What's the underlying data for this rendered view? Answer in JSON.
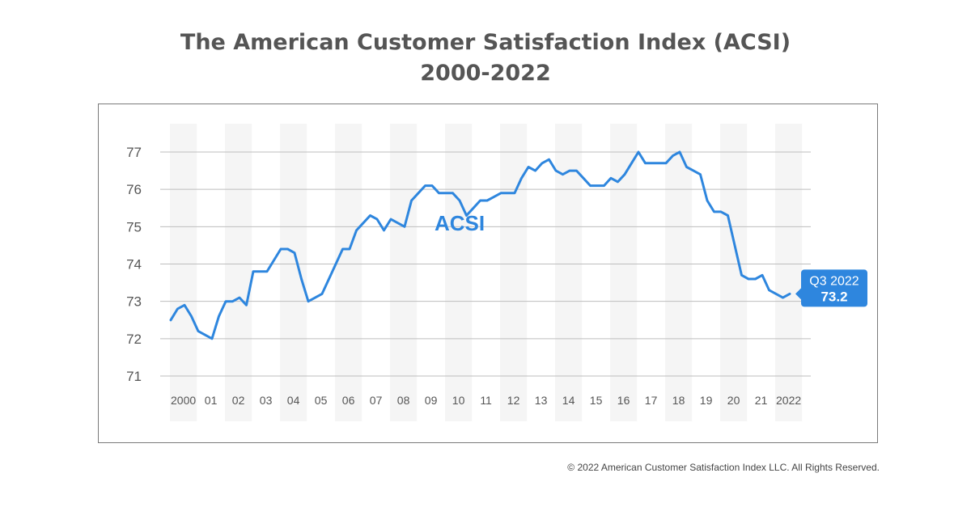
{
  "title": {
    "line1": "The American Customer Satisfaction Index (ACSI)",
    "line2": "2000-2022"
  },
  "footer": {
    "copyright": "© 2022 American Customer Satisfaction Index LLC. All Rights Reserved."
  },
  "colors": {
    "line": "#2e86de",
    "text": "#555555",
    "grid": "#bdbdbd",
    "band": "#f5f5f5",
    "callout": "#2e86de"
  },
  "chart_data": {
    "type": "line",
    "title": "The American Customer Satisfaction Index (ACSI) 2000-2022",
    "xlabel": "",
    "ylabel": "",
    "ylim": [
      71,
      77
    ],
    "yticks": [
      71,
      72,
      73,
      74,
      75,
      76,
      77
    ],
    "x_tick_labels": [
      "2000",
      "01",
      "02",
      "03",
      "04",
      "05",
      "06",
      "07",
      "08",
      "09",
      "10",
      "11",
      "12",
      "13",
      "14",
      "15",
      "16",
      "17",
      "18",
      "19",
      "20",
      "21",
      "2022"
    ],
    "grid": "horizontal",
    "year_bands": "alternating",
    "series": [
      {
        "name": "ACSI",
        "x": [
          2000.0,
          2000.25,
          2000.5,
          2000.75,
          2001.0,
          2001.25,
          2001.5,
          2001.75,
          2002.0,
          2002.25,
          2002.5,
          2002.75,
          2003.0,
          2003.25,
          2003.5,
          2003.75,
          2004.0,
          2004.25,
          2004.5,
          2004.75,
          2005.0,
          2005.25,
          2005.5,
          2005.75,
          2006.0,
          2006.25,
          2006.5,
          2006.75,
          2007.0,
          2007.25,
          2007.5,
          2007.75,
          2008.0,
          2008.25,
          2008.5,
          2008.75,
          2009.0,
          2009.25,
          2009.5,
          2009.75,
          2010.0,
          2010.25,
          2010.5,
          2010.75,
          2011.0,
          2011.25,
          2011.5,
          2011.75,
          2012.0,
          2012.25,
          2012.5,
          2012.75,
          2013.0,
          2013.25,
          2013.5,
          2013.75,
          2014.0,
          2014.25,
          2014.5,
          2014.75,
          2015.0,
          2015.25,
          2015.5,
          2015.75,
          2016.0,
          2016.25,
          2016.5,
          2016.75,
          2017.0,
          2017.25,
          2017.5,
          2017.75,
          2018.0,
          2018.25,
          2018.5,
          2018.75,
          2019.0,
          2019.25,
          2019.5,
          2019.75,
          2020.0,
          2020.25,
          2020.5,
          2020.75,
          2021.0,
          2021.25,
          2021.5,
          2021.75,
          2022.0,
          2022.25,
          2022.5
        ],
        "values": [
          72.5,
          72.8,
          72.9,
          72.6,
          72.2,
          72.1,
          72.0,
          72.6,
          73.0,
          73.0,
          73.1,
          72.9,
          73.8,
          73.8,
          73.8,
          74.1,
          74.4,
          74.4,
          74.3,
          73.6,
          73.0,
          73.1,
          73.2,
          73.6,
          74.0,
          74.4,
          74.4,
          74.9,
          75.1,
          75.3,
          75.2,
          74.9,
          75.2,
          75.1,
          75.0,
          75.7,
          75.9,
          76.1,
          76.1,
          75.9,
          75.9,
          75.9,
          75.7,
          75.3,
          75.5,
          75.7,
          75.7,
          75.8,
          75.9,
          75.9,
          75.9,
          76.3,
          76.6,
          76.5,
          76.7,
          76.8,
          76.5,
          76.4,
          76.5,
          76.5,
          76.3,
          76.1,
          76.1,
          76.1,
          76.3,
          76.2,
          76.4,
          76.7,
          77.0,
          76.7,
          76.7,
          76.7,
          76.7,
          76.9,
          77.0,
          76.6,
          76.5,
          76.4,
          75.7,
          75.4,
          75.4,
          75.3,
          74.5,
          73.7,
          73.6,
          73.6,
          73.7,
          73.3,
          73.2,
          73.1,
          73.2
        ]
      }
    ],
    "annotations": [
      {
        "text": "ACSI",
        "x": 2010.5,
        "y": 74.9
      }
    ],
    "callout": {
      "period": "Q3 2022",
      "value": "73.2",
      "x": 2022.5,
      "y": 73.2
    }
  }
}
